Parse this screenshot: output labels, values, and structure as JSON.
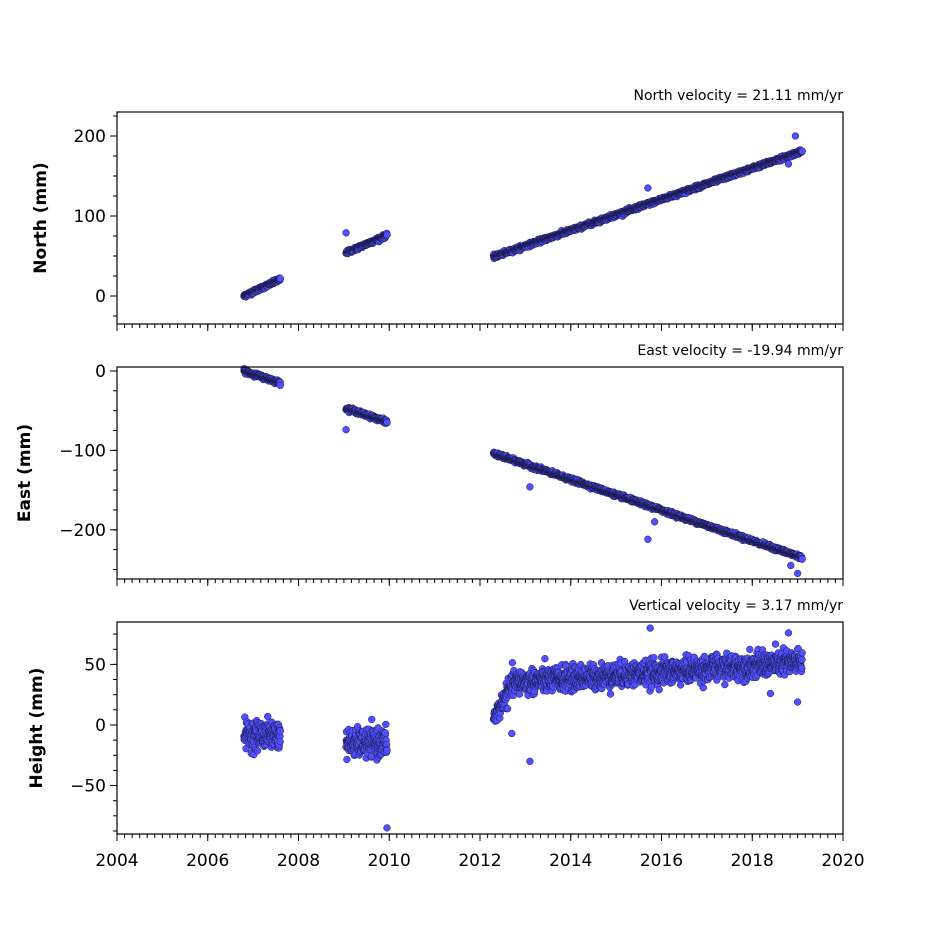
{
  "chart_data": [
    {
      "type": "scatter",
      "title": "North velocity = 21.11 mm/yr",
      "ylabel": "North (mm)",
      "xlim": [
        2004,
        2020
      ],
      "ylim": [
        -35,
        230
      ],
      "yticks": [
        0,
        100,
        200
      ],
      "color": "#5050ff",
      "segments": [
        {
          "x": [
            2006.8,
            2007.6
          ],
          "y": [
            0,
            21
          ],
          "noise": 2
        },
        {
          "x": [
            2009.05,
            2009.95
          ],
          "y": [
            54,
            76
          ],
          "noise": 2
        },
        {
          "x": [
            2012.3,
            2019.1
          ],
          "y": [
            49,
            181
          ],
          "noise": 2
        }
      ],
      "outliers": [
        [
          2009.05,
          79
        ],
        [
          2015.7,
          135
        ],
        [
          2018.95,
          200
        ],
        [
          2018.8,
          165
        ]
      ]
    },
    {
      "type": "scatter",
      "title": "East velocity = -19.94 mm/yr",
      "ylabel": "East (mm)",
      "xlim": [
        2004,
        2020
      ],
      "ylim": [
        -262,
        5
      ],
      "yticks": [
        0,
        -100,
        -200
      ],
      "color": "#5050ff",
      "segments": [
        {
          "x": [
            2006.8,
            2007.6
          ],
          "y": [
            0,
            -15
          ],
          "noise": 2
        },
        {
          "x": [
            2009.05,
            2009.95
          ],
          "y": [
            -47,
            -64
          ],
          "noise": 2
        },
        {
          "x": [
            2012.3,
            2019.1
          ],
          "y": [
            -104,
            -235
          ],
          "noise": 2
        }
      ],
      "outliers": [
        [
          2009.05,
          -74
        ],
        [
          2013.1,
          -146
        ],
        [
          2015.7,
          -212
        ],
        [
          2015.85,
          -190
        ],
        [
          2019.0,
          -255
        ],
        [
          2018.85,
          -245
        ]
      ]
    },
    {
      "type": "scatter",
      "title": "Vertical velocity = 3.17 mm/yr",
      "ylabel": "Height (mm)",
      "xlim": [
        2004,
        2020
      ],
      "xticks": [
        2004,
        2006,
        2008,
        2010,
        2012,
        2014,
        2016,
        2018,
        2020
      ],
      "ylim": [
        -90,
        85
      ],
      "yticks": [
        -50,
        0,
        50
      ],
      "color": "#5050ff",
      "segments": [
        {
          "x": [
            2006.8,
            2007.6
          ],
          "y": [
            -8,
            -8
          ],
          "noise": 10
        },
        {
          "x": [
            2009.05,
            2009.95
          ],
          "y": [
            -15,
            -15
          ],
          "noise": 10
        },
        {
          "x": [
            2012.3,
            2012.7
          ],
          "y": [
            5,
            33
          ],
          "noise": 8
        },
        {
          "x": [
            2012.7,
            2019.1
          ],
          "y": [
            35,
            52
          ],
          "noise": 9
        }
      ],
      "outliers": [
        [
          2009.95,
          -85
        ],
        [
          2013.1,
          -30
        ],
        [
          2012.7,
          -7
        ],
        [
          2015.75,
          80
        ],
        [
          2018.8,
          76
        ],
        [
          2018.4,
          26
        ],
        [
          2019.0,
          19
        ]
      ]
    }
  ]
}
